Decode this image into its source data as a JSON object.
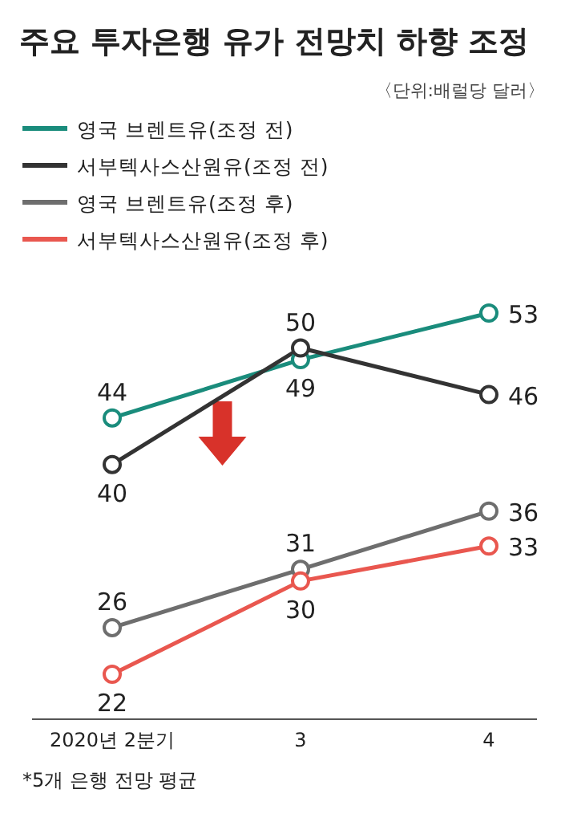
{
  "chart_data": {
    "type": "line",
    "title": "주요 투자은행 유가 전망치 하향 조정",
    "subtitle": "〈단위:배럴당 달러〉",
    "categories": [
      "2020년 2분기",
      "3",
      "4"
    ],
    "series": [
      {
        "name": "영국 브렌트유(조정 전)",
        "color": "#1a8c7c",
        "values": [
          44,
          49,
          53
        ]
      },
      {
        "name": "서부텍사스산원유(조정 전)",
        "color": "#333333",
        "values": [
          40,
          50,
          46
        ]
      },
      {
        "name": "영국 브렌트유(조정 후)",
        "color": "#6e6e6e",
        "values": [
          26,
          31,
          36
        ]
      },
      {
        "name": "서부텍사스산원유(조정 후)",
        "color": "#e9574f",
        "values": [
          22,
          30,
          33
        ]
      }
    ],
    "data_labels": true,
    "marker": "circle",
    "legend": "top left",
    "grid": false,
    "annotations": [
      "*5개 은행 전망 평균"
    ]
  }
}
